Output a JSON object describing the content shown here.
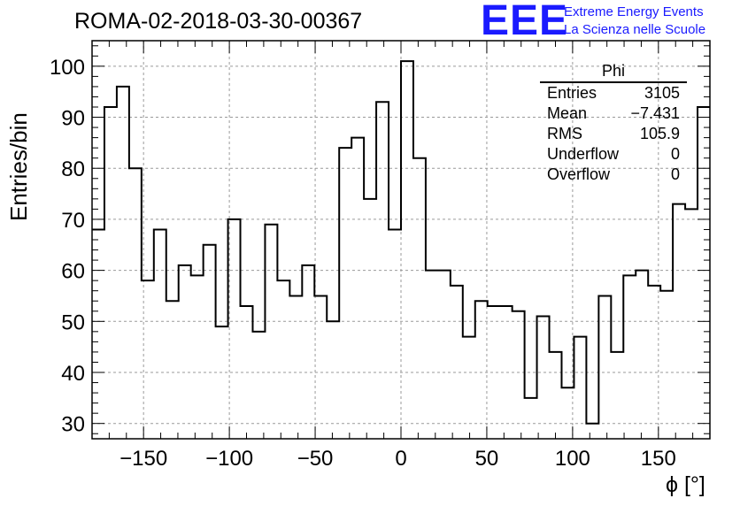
{
  "title": "ROMA-02-2018-03-30-00367",
  "logo": {
    "letters": "EEE",
    "line1": "Extreme Energy Events",
    "line2": "La Scienza nelle Scuole",
    "color": "#1a1aff"
  },
  "stats": {
    "name": "Phi",
    "rows": [
      {
        "label": "Entries",
        "value": "3105"
      },
      {
        "label": "Mean",
        "value": "−7.431"
      },
      {
        "label": "RMS",
        "value": "105.9"
      },
      {
        "label": "Underflow",
        "value": "0"
      },
      {
        "label": "Overflow",
        "value": "0"
      }
    ]
  },
  "chart_data": {
    "type": "histogram",
    "xlabel": "ϕ [°]",
    "ylabel": "Entries/bin",
    "xlim": [
      -180,
      180
    ],
    "ylim": [
      27,
      105
    ],
    "xticks": [
      -150,
      -100,
      -50,
      0,
      50,
      100,
      150
    ],
    "xtick_labels": [
      "−150",
      "−100",
      "−50",
      "0",
      "50",
      "100",
      "150"
    ],
    "yticks": [
      30,
      40,
      50,
      60,
      70,
      80,
      90,
      100
    ],
    "bin_width": 7.2,
    "bin_edges_start": -180,
    "values": [
      68,
      92,
      96,
      80,
      58,
      68,
      54,
      61,
      59,
      65,
      49,
      70,
      53,
      48,
      69,
      58,
      55,
      61,
      55,
      50,
      84,
      86,
      74,
      93,
      68,
      101,
      82,
      60,
      60,
      57,
      47,
      54,
      53,
      53,
      52,
      35,
      51,
      44,
      37,
      47,
      30,
      55,
      44,
      59,
      60,
      57,
      56,
      73,
      72,
      92
    ],
    "grid": true,
    "legend": "none"
  }
}
